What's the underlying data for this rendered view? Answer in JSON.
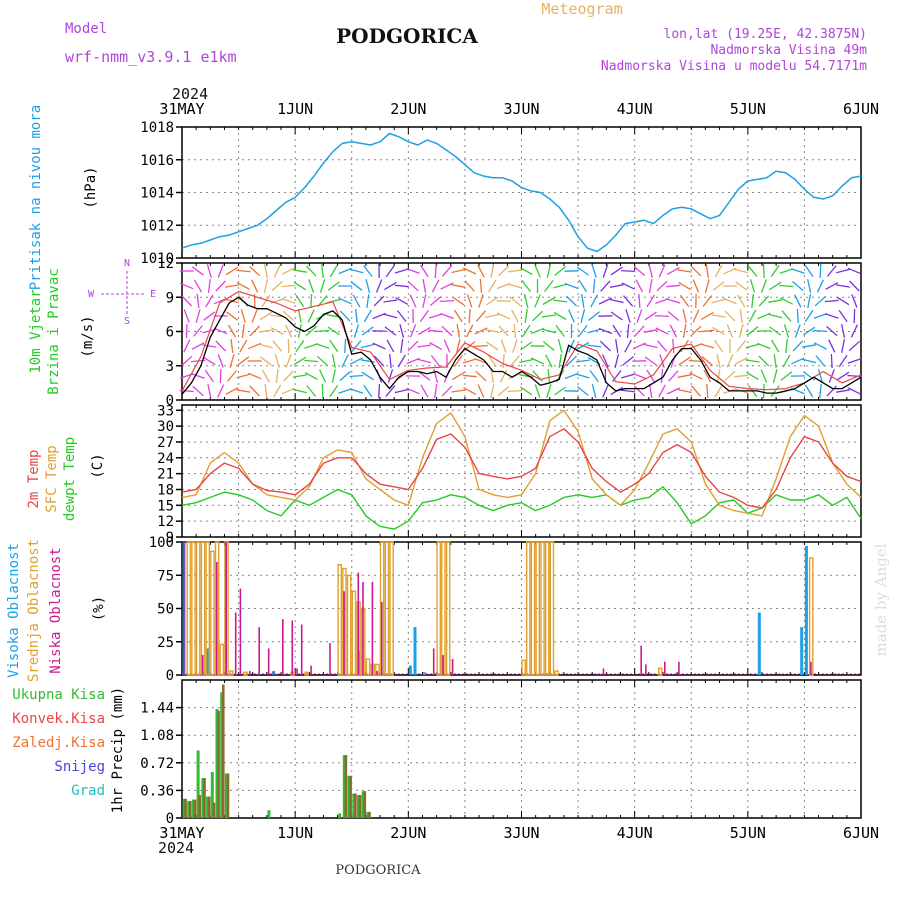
{
  "header": {
    "model_label": "Model",
    "model_name": "wrf-nmm_v3.9.1  e1km",
    "city": "PODGORICA",
    "chart_kind": "Meteogram",
    "coords": "lon,lat (19.25E, 42.3875N)",
    "altitude": "Nadmorska Visina 49m",
    "model_altitude": "Nadmorska Visina u modelu 54.7171m",
    "footer_city": "PODGORICA",
    "watermark": "made by Angel"
  },
  "colors": {
    "pressure": "#1ea0e6",
    "wind_label": "#22cc22",
    "temp2m": "#e84646",
    "sfc": "#e0a030",
    "dewpt": "#22cc22",
    "cloud_high": "#1ea0e6",
    "cloud_mid": "#e0a030",
    "cloud_low": "#cc1890",
    "precip_total": "#33bb33",
    "precip_conv": "#e84646",
    "precip_frozen": "#f07030",
    "precip_snow": "#4444dd",
    "precip_hail": "#22bbbb",
    "compass": "#b044dd"
  },
  "time_axis": {
    "hours_total": 144,
    "top_year": "2024",
    "bottom_year": "2024",
    "ticks": [
      {
        "hour": 0,
        "label": "31MAY"
      },
      {
        "hour": 24,
        "label": "1JUN"
      },
      {
        "hour": 48,
        "label": "2JUN"
      },
      {
        "hour": 72,
        "label": "3JUN"
      },
      {
        "hour": 96,
        "label": "4JUN"
      },
      {
        "hour": 120,
        "label": "5JUN"
      },
      {
        "hour": 144,
        "label": "6JUN"
      }
    ]
  },
  "chart_data": [
    {
      "type": "line",
      "ylabel_left": "Pritisak na nivou mora",
      "ylabel_unit": "(hPa)",
      "ylim": [
        1010,
        1018
      ],
      "yticks": [
        1010,
        1012,
        1014,
        1016,
        1018
      ],
      "series": [
        {
          "x": [
            0,
            2,
            4,
            6,
            8,
            10,
            12,
            14,
            16,
            18,
            20,
            22,
            24,
            26,
            28,
            30,
            32,
            34,
            36,
            38,
            40,
            42,
            44,
            46,
            48,
            50,
            52,
            54,
            56,
            58,
            60,
            62,
            64,
            66,
            68,
            70,
            72,
            74,
            76,
            78,
            80,
            82,
            84,
            86,
            88,
            90,
            92,
            94,
            96,
            98,
            100,
            102,
            104,
            106,
            108,
            110,
            112,
            114,
            116,
            118,
            120,
            122,
            124,
            126,
            128,
            130,
            132,
            134,
            136,
            138,
            140,
            142,
            144
          ],
          "values": [
            1010.6,
            1010.8,
            1010.9,
            1011.1,
            1011.3,
            1011.4,
            1011.6,
            1011.8,
            1012.0,
            1012.4,
            1012.9,
            1013.4,
            1013.7,
            1014.3,
            1015.0,
            1015.8,
            1016.5,
            1017.0,
            1017.1,
            1017.0,
            1016.9,
            1017.1,
            1017.6,
            1017.4,
            1017.1,
            1016.9,
            1017.2,
            1017.0,
            1016.6,
            1016.2,
            1015.7,
            1015.2,
            1015.0,
            1014.9,
            1014.9,
            1014.7,
            1014.3,
            1014.1,
            1014.0,
            1013.6,
            1013.1,
            1012.3,
            1011.3,
            1010.6,
            1010.4,
            1010.8,
            1011.4,
            1012.1,
            1012.2,
            1012.3,
            1012.1,
            1012.6,
            1013.0,
            1013.1,
            1013.0,
            1012.7,
            1012.4,
            1012.6,
            1013.4,
            1014.2,
            1014.7,
            1014.8,
            1014.9,
            1015.3,
            1015.2,
            1014.8,
            1014.2,
            1013.7,
            1013.6,
            1013.8,
            1014.4,
            1014.9,
            1015.0
          ]
        }
      ]
    },
    {
      "type": "line",
      "ylabel_left": [
        "10m Vjetar",
        "Brzina i Pravac"
      ],
      "ylabel_unit": "(m/s)",
      "compass": {
        "n": "N",
        "s": "S",
        "e": "E",
        "w": "W"
      },
      "ylim": [
        0,
        12
      ],
      "yticks": [
        0,
        3,
        6,
        9,
        12
      ],
      "series": [
        {
          "name": "wind_speed",
          "x": [
            0,
            2,
            4,
            6,
            8,
            10,
            12,
            14,
            16,
            18,
            20,
            22,
            24,
            26,
            28,
            30,
            32,
            34,
            36,
            38,
            40,
            42,
            44,
            46,
            48,
            50,
            52,
            54,
            56,
            58,
            60,
            62,
            64,
            66,
            68,
            70,
            72,
            74,
            76,
            78,
            80,
            82,
            84,
            86,
            88,
            90,
            92,
            94,
            96,
            98,
            100,
            102,
            104,
            106,
            108,
            110,
            112,
            114,
            116,
            118,
            120,
            122,
            124,
            126,
            128,
            130,
            132,
            134,
            136,
            138,
            140,
            142,
            144
          ],
          "values": [
            0.5,
            1.5,
            3.0,
            5.5,
            7.0,
            8.5,
            9.0,
            8.3,
            8.0,
            8.0,
            7.6,
            7.2,
            6.4,
            6.0,
            6.5,
            7.5,
            7.8,
            7.0,
            4.0,
            4.2,
            3.5,
            2.0,
            1.0,
            2.0,
            2.5,
            2.5,
            2.3,
            2.5,
            2.0,
            3.5,
            4.5,
            4.0,
            3.5,
            2.5,
            2.5,
            2.0,
            2.5,
            2.0,
            1.3,
            1.5,
            1.8,
            4.8,
            4.3,
            4.0,
            3.5,
            1.5,
            0.8,
            1.0,
            1.0,
            1.0,
            1.5,
            2.0,
            3.5,
            4.5,
            4.5,
            3.5,
            2.0,
            1.5,
            0.8,
            0.8,
            0.8,
            0.8,
            0.6,
            0.6,
            0.8,
            1.0,
            1.5,
            2.0,
            1.5,
            1.0,
            1.0,
            1.5,
            2.0
          ]
        },
        {
          "name": "wind_gust",
          "x": [
            0,
            4,
            8,
            12,
            16,
            20,
            24,
            28,
            32,
            36,
            40,
            44,
            48,
            52,
            56,
            60,
            64,
            68,
            72,
            76,
            80,
            84,
            88,
            92,
            96,
            100,
            104,
            108,
            112,
            116,
            120,
            124,
            128,
            132,
            136,
            140,
            144
          ],
          "values": [
            0.8,
            3.8,
            8.5,
            9.5,
            9.0,
            8.5,
            7.8,
            8.2,
            8.6,
            4.6,
            4.2,
            1.8,
            2.6,
            2.8,
            2.9,
            5.0,
            4.2,
            3.2,
            2.6,
            1.8,
            2.2,
            4.9,
            4.3,
            1.6,
            1.4,
            2.2,
            4.5,
            4.9,
            2.6,
            1.2,
            1.0,
            0.9,
            1.0,
            1.5,
            2.5,
            1.5,
            2.2
          ]
        }
      ]
    },
    {
      "type": "line",
      "ylabel_left": [
        "2m Temp",
        "SFC Temp",
        "dewpt Temp"
      ],
      "ylabel_unit": "(C)",
      "ylim": [
        9,
        34
      ],
      "yticks": [
        9,
        12,
        15,
        18,
        21,
        24,
        27,
        30,
        33
      ],
      "series": [
        {
          "name": "2m Temp",
          "x": [
            0,
            3,
            6,
            9,
            12,
            15,
            18,
            21,
            24,
            27,
            30,
            33,
            36,
            39,
            42,
            45,
            48,
            51,
            54,
            57,
            60,
            63,
            66,
            69,
            72,
            75,
            78,
            81,
            84,
            87,
            90,
            93,
            96,
            99,
            102,
            105,
            108,
            111,
            114,
            117,
            120,
            123,
            126,
            129,
            132,
            135,
            138,
            141,
            144
          ],
          "values": [
            17.5,
            18.0,
            21.0,
            23.0,
            22.0,
            19.0,
            17.8,
            17.5,
            17.0,
            19.0,
            23.0,
            24.0,
            24.0,
            21.0,
            19.0,
            18.5,
            18.0,
            22.0,
            27.5,
            28.5,
            26.0,
            21.0,
            20.5,
            20.0,
            20.5,
            22.0,
            28.0,
            29.5,
            27.0,
            22.0,
            19.5,
            17.5,
            19.0,
            21.0,
            25.0,
            26.5,
            25.0,
            20.5,
            17.5,
            16.5,
            15.0,
            14.5,
            18.0,
            24.0,
            28.0,
            27.0,
            23.0,
            20.5,
            19.5
          ]
        },
        {
          "name": "SFC Temp",
          "x": [
            0,
            3,
            6,
            9,
            12,
            15,
            18,
            21,
            24,
            27,
            30,
            33,
            36,
            39,
            42,
            45,
            48,
            51,
            54,
            57,
            60,
            63,
            66,
            69,
            72,
            75,
            78,
            81,
            84,
            87,
            90,
            93,
            96,
            99,
            102,
            105,
            108,
            111,
            114,
            117,
            120,
            123,
            126,
            129,
            132,
            135,
            138,
            141,
            144
          ],
          "values": [
            16.5,
            17.0,
            23.0,
            25.0,
            23.0,
            19.0,
            17.0,
            16.5,
            16.0,
            18.5,
            24.0,
            25.5,
            25.0,
            20.0,
            18.0,
            16.0,
            15.0,
            24.0,
            30.5,
            32.5,
            28.0,
            18.0,
            17.0,
            16.5,
            17.0,
            21.0,
            31.0,
            33.0,
            29.0,
            20.0,
            17.0,
            15.0,
            18.0,
            23.0,
            28.5,
            29.5,
            27.0,
            19.0,
            15.0,
            14.0,
            13.5,
            13.0,
            20.0,
            28.0,
            32.0,
            30.0,
            23.0,
            19.0,
            16.5
          ]
        },
        {
          "name": "dewpt Temp",
          "x": [
            0,
            3,
            6,
            9,
            12,
            15,
            18,
            21,
            24,
            27,
            30,
            33,
            36,
            39,
            42,
            45,
            48,
            51,
            54,
            57,
            60,
            63,
            66,
            69,
            72,
            75,
            78,
            81,
            84,
            87,
            90,
            93,
            96,
            99,
            102,
            105,
            108,
            111,
            114,
            117,
            120,
            123,
            126,
            129,
            132,
            135,
            138,
            141,
            144
          ],
          "values": [
            15.0,
            15.5,
            16.5,
            17.5,
            17.0,
            16.0,
            14.0,
            13.0,
            16.0,
            15.0,
            16.5,
            18.0,
            17.0,
            13.0,
            11.0,
            10.5,
            12.0,
            15.5,
            16.0,
            17.0,
            16.5,
            15.0,
            14.0,
            15.0,
            15.5,
            14.0,
            15.0,
            16.5,
            17.0,
            16.5,
            17.0,
            15.0,
            16.0,
            16.5,
            18.5,
            15.5,
            11.5,
            13.0,
            15.5,
            16.0,
            13.5,
            14.5,
            17.0,
            16.0,
            16.0,
            17.0,
            15.0,
            16.5,
            12.5
          ]
        }
      ]
    },
    {
      "type": "bar",
      "ylabel_left": [
        "Visoka Oblacnost",
        "Srednja Oblacnost",
        "Niska Oblacnost"
      ],
      "ylabel_unit": "(%)",
      "ylim": [
        0,
        100
      ],
      "yticks": [
        0,
        25,
        50,
        75,
        100
      ],
      "series": [
        {
          "name": "Visoka Oblacnost",
          "x": [
            0,
            5,
            19,
            37,
            48,
            49,
            51,
            122,
            131,
            132
          ],
          "values": [
            100,
            20,
            3,
            18,
            7,
            36,
            2,
            47,
            36,
            97
          ]
        },
        {
          "name": "Srednja Oblacnost",
          "x": [
            1,
            2,
            3,
            4,
            5,
            6,
            7,
            8,
            9,
            10,
            13,
            23,
            26,
            33,
            34,
            35,
            36,
            37,
            38,
            39,
            40,
            41,
            42,
            43,
            44,
            54,
            55,
            56,
            72,
            73,
            74,
            75,
            76,
            77,
            78,
            79,
            101,
            133
          ],
          "values": [
            100,
            100,
            100,
            100,
            100,
            93,
            100,
            23,
            100,
            3,
            2,
            2,
            2,
            83,
            80,
            75,
            63,
            55,
            50,
            12,
            8,
            8,
            100,
            100,
            100,
            100,
            100,
            100,
            11,
            100,
            100,
            100,
            100,
            100,
            100,
            3,
            5,
            88
          ]
        },
        {
          "name": "Niska Oblacnost",
          "x": [
            0,
            4,
            7,
            9,
            11,
            12,
            14,
            16,
            18,
            19,
            21,
            23,
            24,
            25,
            27,
            31,
            34,
            37,
            38,
            40,
            41,
            42,
            53,
            55,
            57,
            89,
            97,
            98,
            102,
            105,
            133
          ],
          "values": [
            100,
            15,
            85,
            100,
            47,
            65,
            3,
            36,
            20,
            2,
            42,
            41,
            5,
            38,
            7,
            24,
            63,
            77,
            70,
            70,
            3,
            55,
            20,
            15,
            12,
            5,
            22,
            8,
            10,
            10,
            10
          ]
        }
      ]
    },
    {
      "type": "bar",
      "ylabel_left": [
        "Ukupna Kisa",
        "Konvek.Kisa",
        "Zaledj.Kisa",
        "Snijeg",
        "Grad"
      ],
      "ylabel_unit": "1hr Precip (mm)",
      "ylim": [
        0,
        1.8
      ],
      "yticks": [
        0,
        0.36,
        0.72,
        1.08,
        1.44
      ],
      "series": [
        {
          "name": "Ukupna Kisa",
          "x": [
            0,
            1,
            2,
            3,
            4,
            5,
            6,
            7,
            8,
            9,
            18,
            33,
            34,
            35,
            36,
            37,
            38,
            39
          ],
          "values": [
            0.25,
            0.22,
            0.24,
            0.88,
            0.52,
            0.28,
            0.6,
            1.42,
            1.64,
            0.58,
            0.1,
            0.06,
            0.82,
            0.55,
            0.32,
            0.3,
            0.35,
            0.08
          ]
        },
        {
          "name": "Konvek.Kisa",
          "x": [
            0,
            1,
            2,
            3,
            4,
            5,
            6,
            7,
            8,
            9,
            34,
            35,
            36,
            37,
            38,
            39
          ],
          "values": [
            0.25,
            0.22,
            0.24,
            0.3,
            0.52,
            0.28,
            0.2,
            1.4,
            1.74,
            0.58,
            0.82,
            0.55,
            0.32,
            0.3,
            0.35,
            0.08
          ]
        }
      ]
    }
  ]
}
